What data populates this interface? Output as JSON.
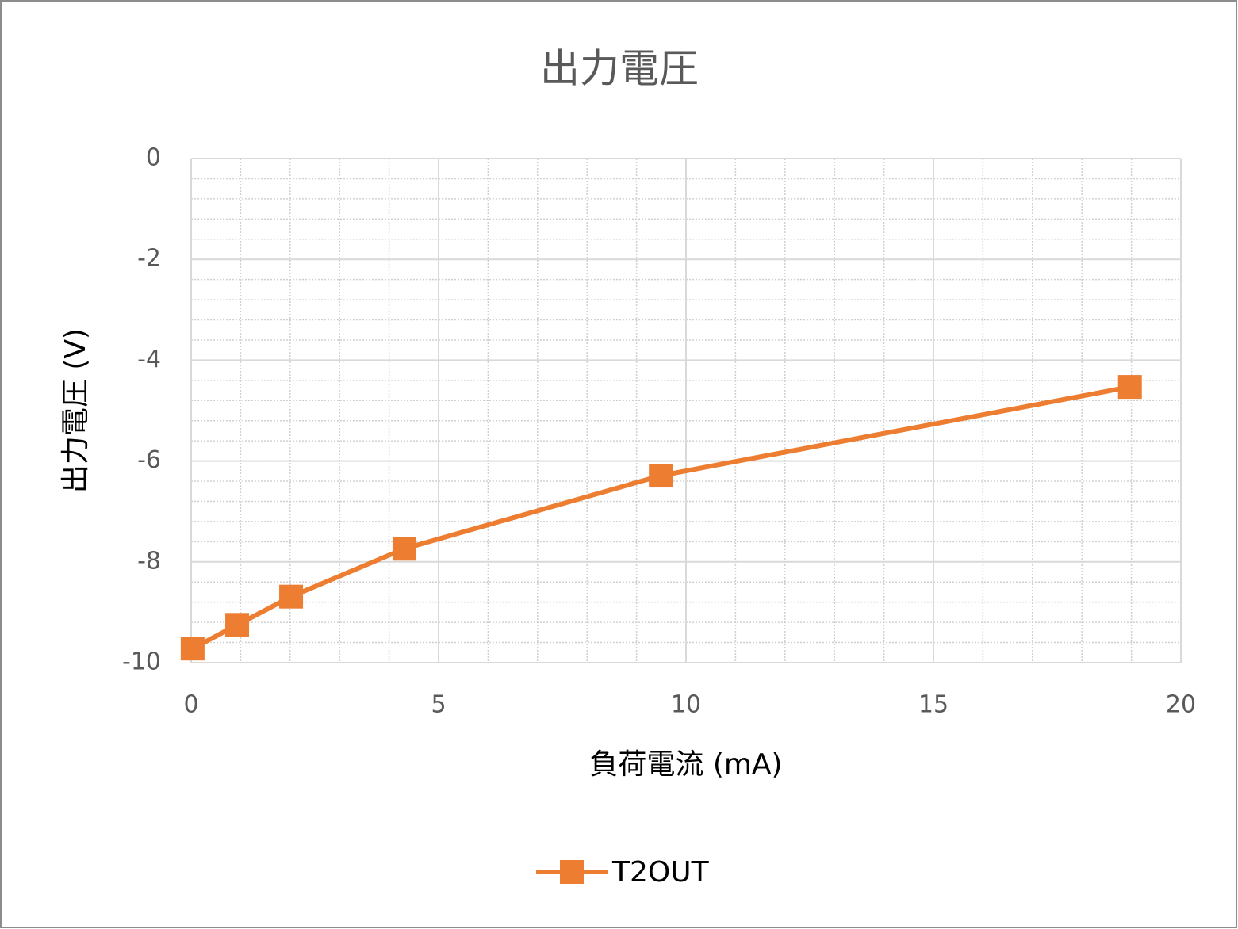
{
  "chart_data": {
    "type": "line",
    "title": "出力電圧",
    "x_label": "負荷電流 (mA)",
    "y_label": "出力電圧 (V)",
    "x": [
      0.03,
      0.93,
      2.02,
      4.31,
      9.49,
      18.97
    ],
    "series": [
      {
        "name": "T2OUT",
        "color": "#ed7d31",
        "values": [
          -9.72,
          -9.25,
          -8.69,
          -7.74,
          -6.29,
          -4.53
        ]
      }
    ],
    "xlim": [
      0,
      20
    ],
    "xticks": [
      0,
      5,
      10,
      15,
      20
    ],
    "ylim": [
      -10,
      0
    ],
    "yticks": [
      0,
      -2,
      -4,
      -6,
      -8,
      -10
    ],
    "grid": true,
    "minor_grid": {
      "x": 1,
      "y": 0.4
    },
    "legend": "bottom"
  }
}
